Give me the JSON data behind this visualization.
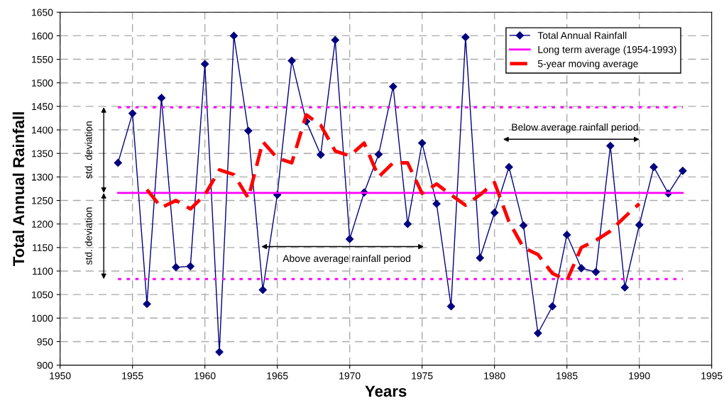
{
  "chart_data": {
    "type": "line",
    "xlabel": "Years",
    "ylabel": "Total Annual Rainfall",
    "xlim": [
      1950,
      1995
    ],
    "xticks": [
      1950,
      1955,
      1960,
      1965,
      1970,
      1975,
      1980,
      1985,
      1990,
      1995
    ],
    "ylim": [
      900,
      1650
    ],
    "yticks": [
      900,
      950,
      1000,
      1050,
      1100,
      1150,
      1200,
      1250,
      1300,
      1350,
      1400,
      1450,
      1500,
      1550,
      1600,
      1650
    ],
    "grid": true,
    "legend": "top right",
    "series": [
      {
        "name": "Total Annual Rainfall",
        "color": "#000080",
        "marker": "diamond",
        "line_style": "solid",
        "x": [
          1954,
          1955,
          1956,
          1957,
          1958,
          1959,
          1960,
          1961,
          1962,
          1963,
          1964,
          1965,
          1966,
          1967,
          1968,
          1969,
          1970,
          1971,
          1972,
          1973,
          1974,
          1975,
          1976,
          1977,
          1978,
          1979,
          1980,
          1981,
          1982,
          1983,
          1984,
          1985,
          1986,
          1987,
          1988,
          1989,
          1990,
          1991,
          1992,
          1993
        ],
        "values": [
          1330,
          1435,
          1030,
          1468,
          1108,
          1110,
          1540,
          928,
          1600,
          1398,
          1060,
          1262,
          1547,
          1418,
          1347,
          1591,
          1168,
          1267,
          1348,
          1492,
          1200,
          1372,
          1243,
          1025,
          1597,
          1128,
          1224,
          1321,
          1197,
          968,
          1025,
          1177,
          1106,
          1098,
          1366,
          1065,
          1198,
          1321,
          1265,
          1313
        ]
      },
      {
        "name": "Long term average (1954-1993)",
        "color": "#ff00ff",
        "marker": "none",
        "line_style": "solid",
        "x": [
          1954,
          1993
        ],
        "values": [
          1266,
          1266
        ]
      },
      {
        "name": "5-year moving average",
        "color": "#ff0000",
        "marker": "none",
        "line_style": "dashed",
        "x": [
          1956,
          1957,
          1958,
          1959,
          1960,
          1961,
          1962,
          1963,
          1964,
          1965,
          1966,
          1967,
          1968,
          1969,
          1970,
          1971,
          1972,
          1973,
          1974,
          1975,
          1976,
          1977,
          1978,
          1979,
          1980,
          1981,
          1982,
          1983,
          1984,
          1985,
          1986,
          1987,
          1988,
          1989,
          1990
        ],
        "values": [
          1273,
          1235,
          1250,
          1232,
          1262,
          1315,
          1305,
          1255,
          1375,
          1340,
          1330,
          1432,
          1410,
          1355,
          1345,
          1372,
          1300,
          1330,
          1330,
          1265,
          1285,
          1262,
          1240,
          1262,
          1288,
          1205,
          1150,
          1135,
          1095,
          1080,
          1150,
          1165,
          1185,
          1215,
          1243
        ]
      },
      {
        "color": "#ff00ff",
        "marker": "none",
        "line_style": "dotted",
        "x": [
          1954,
          1993
        ],
        "values": [
          1448,
          1448
        ]
      },
      {
        "color": "#ff00ff",
        "marker": "none",
        "line_style": "dotted",
        "x": [
          1954,
          1993
        ],
        "values": [
          1083,
          1083
        ]
      }
    ],
    "annotations": [
      "std. deviation",
      "std. deviation",
      "Above average rainfall period",
      "Below average rainfall period"
    ]
  }
}
